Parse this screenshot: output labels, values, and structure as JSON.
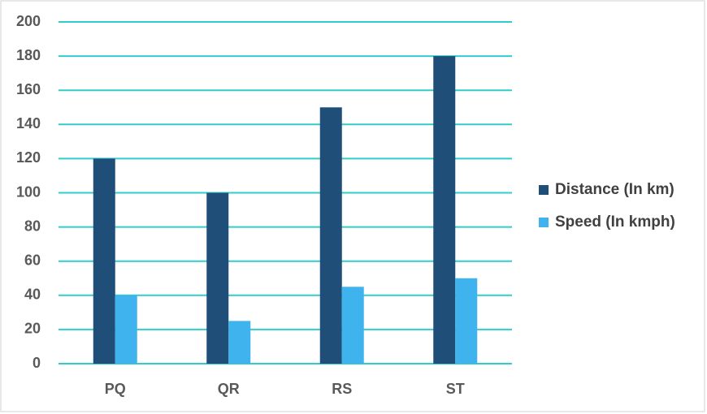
{
  "chart_data": {
    "type": "bar",
    "categories": [
      "PQ",
      "QR",
      "RS",
      "ST"
    ],
    "series": [
      {
        "name": "Distance (In km)",
        "color": "#1f4e79",
        "values": [
          120,
          100,
          150,
          180
        ]
      },
      {
        "name": "Speed (In kmph)",
        "color": "#3fb3ee",
        "values": [
          40,
          25,
          45,
          50
        ]
      }
    ],
    "ylim": [
      0,
      200
    ],
    "yticks": [
      0,
      20,
      40,
      60,
      80,
      100,
      120,
      140,
      160,
      180,
      200
    ],
    "grid": true,
    "grid_color": "#33cccc",
    "legend": "right"
  }
}
